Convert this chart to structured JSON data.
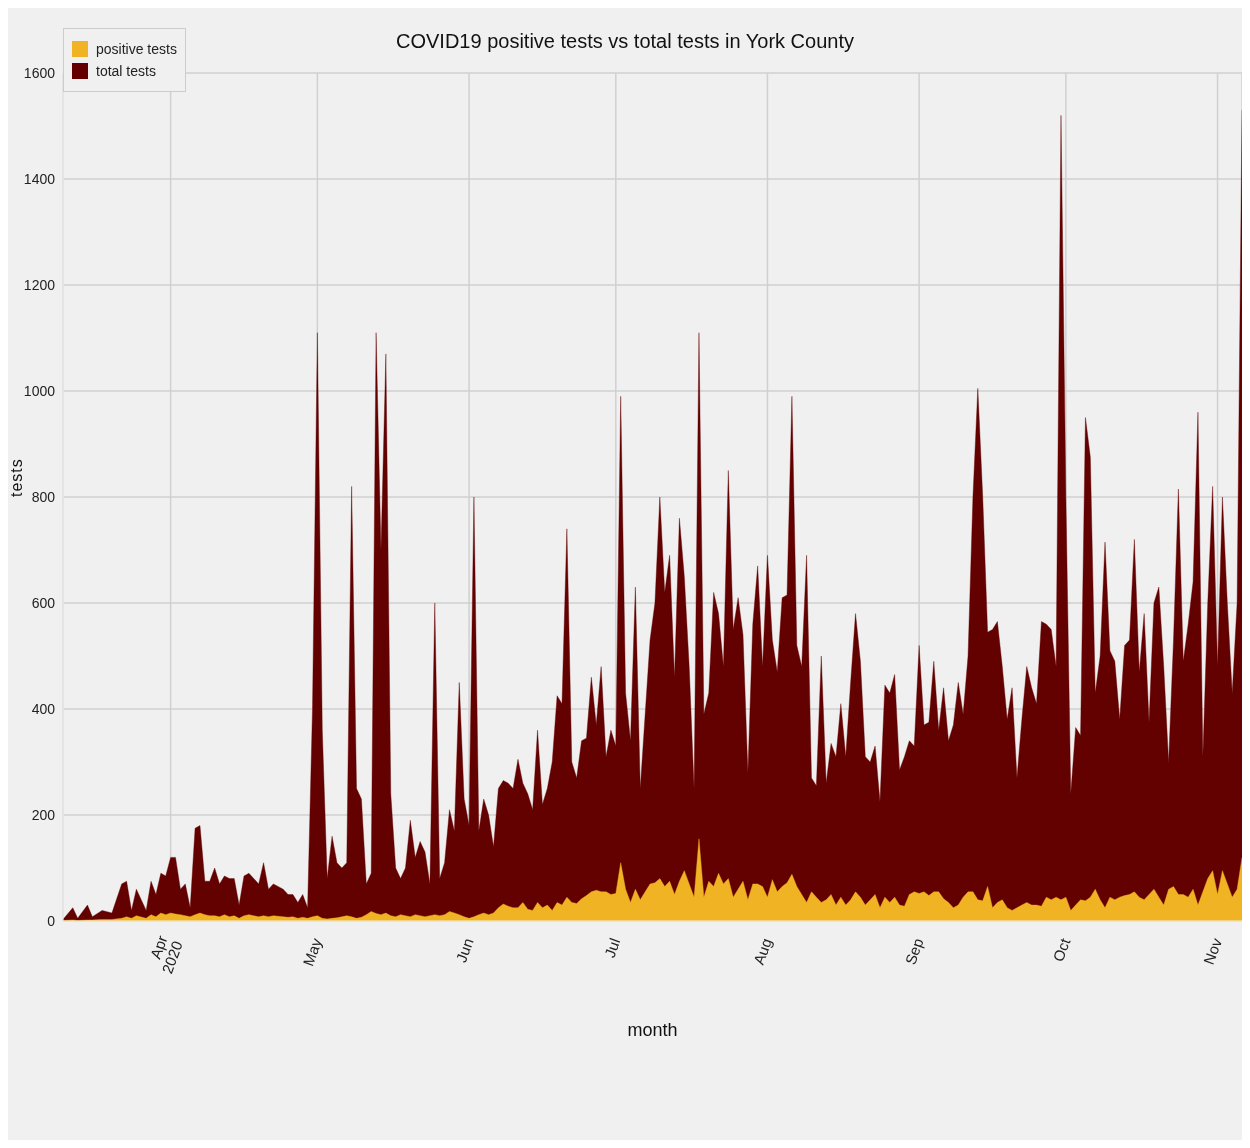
{
  "chart_data": {
    "type": "area",
    "title": "COVID19 positive tests vs total tests in York County",
    "xlabel": "month",
    "ylabel": "tests",
    "x": [
      "2020-03-10",
      "2020-03-12",
      "2020-03-13",
      "2020-03-15",
      "2020-03-16",
      "2020-03-18",
      "2020-03-20",
      "2020-03-22",
      "2020-03-23",
      "2020-03-24",
      "2020-03-25",
      "2020-03-27",
      "2020-03-28",
      "2020-03-29",
      "2020-03-30",
      "2020-03-31",
      "2020-04-01",
      "2020-04-02",
      "2020-04-03",
      "2020-04-04",
      "2020-04-05",
      "2020-04-06",
      "2020-04-07",
      "2020-04-08",
      "2020-04-09",
      "2020-04-10",
      "2020-04-11",
      "2020-04-12",
      "2020-04-13",
      "2020-04-14",
      "2020-04-15",
      "2020-04-16",
      "2020-04-17",
      "2020-04-19",
      "2020-04-20",
      "2020-04-21",
      "2020-04-22",
      "2020-04-24",
      "2020-04-25",
      "2020-04-26",
      "2020-04-27",
      "2020-04-28",
      "2020-04-29",
      "2020-04-30",
      "2020-05-01",
      "2020-05-02",
      "2020-05-03",
      "2020-05-04",
      "2020-05-05",
      "2020-05-06",
      "2020-05-07",
      "2020-05-08",
      "2020-05-09",
      "2020-05-10",
      "2020-05-11",
      "2020-05-12",
      "2020-05-13",
      "2020-05-14",
      "2020-05-15",
      "2020-05-16",
      "2020-05-17",
      "2020-05-18",
      "2020-05-19",
      "2020-05-20",
      "2020-05-21",
      "2020-05-22",
      "2020-05-23",
      "2020-05-24",
      "2020-05-25",
      "2020-05-26",
      "2020-05-27",
      "2020-05-28",
      "2020-05-29",
      "2020-05-30",
      "2020-05-31",
      "2020-06-01",
      "2020-06-02",
      "2020-06-03",
      "2020-06-04",
      "2020-06-05",
      "2020-06-06",
      "2020-06-07",
      "2020-06-08",
      "2020-06-09",
      "2020-06-10",
      "2020-06-11",
      "2020-06-12",
      "2020-06-13",
      "2020-06-14",
      "2020-06-15",
      "2020-06-16",
      "2020-06-17",
      "2020-06-18",
      "2020-06-19",
      "2020-06-20",
      "2020-06-21",
      "2020-06-22",
      "2020-06-23",
      "2020-06-24",
      "2020-06-25",
      "2020-06-26",
      "2020-06-27",
      "2020-06-28",
      "2020-06-29",
      "2020-06-30",
      "2020-07-01",
      "2020-07-02",
      "2020-07-03",
      "2020-07-04",
      "2020-07-05",
      "2020-07-06",
      "2020-07-07",
      "2020-07-08",
      "2020-07-09",
      "2020-07-10",
      "2020-07-11",
      "2020-07-12",
      "2020-07-13",
      "2020-07-14",
      "2020-07-15",
      "2020-07-16",
      "2020-07-17",
      "2020-07-18",
      "2020-07-19",
      "2020-07-20",
      "2020-07-21",
      "2020-07-22",
      "2020-07-23",
      "2020-07-24",
      "2020-07-25",
      "2020-07-26",
      "2020-07-27",
      "2020-07-28",
      "2020-07-29",
      "2020-07-30",
      "2020-07-31",
      "2020-08-01",
      "2020-08-02",
      "2020-08-03",
      "2020-08-04",
      "2020-08-05",
      "2020-08-06",
      "2020-08-07",
      "2020-08-08",
      "2020-08-09",
      "2020-08-10",
      "2020-08-11",
      "2020-08-12",
      "2020-08-13",
      "2020-08-14",
      "2020-08-15",
      "2020-08-16",
      "2020-08-17",
      "2020-08-18",
      "2020-08-19",
      "2020-08-20",
      "2020-08-21",
      "2020-08-22",
      "2020-08-23",
      "2020-08-24",
      "2020-08-25",
      "2020-08-26",
      "2020-08-27",
      "2020-08-28",
      "2020-08-29",
      "2020-08-30",
      "2020-08-31",
      "2020-09-01",
      "2020-09-02",
      "2020-09-03",
      "2020-09-04",
      "2020-09-05",
      "2020-09-06",
      "2020-09-07",
      "2020-09-08",
      "2020-09-09",
      "2020-09-10",
      "2020-09-11",
      "2020-09-12",
      "2020-09-13",
      "2020-09-14",
      "2020-09-15",
      "2020-09-16",
      "2020-09-17",
      "2020-09-18",
      "2020-09-19",
      "2020-09-20",
      "2020-09-21",
      "2020-09-22",
      "2020-09-23",
      "2020-09-24",
      "2020-09-25",
      "2020-09-26",
      "2020-09-27",
      "2020-09-28",
      "2020-09-29",
      "2020-09-30",
      "2020-10-01",
      "2020-10-02",
      "2020-10-03",
      "2020-10-04",
      "2020-10-05",
      "2020-10-06",
      "2020-10-07",
      "2020-10-08",
      "2020-10-09",
      "2020-10-10",
      "2020-10-11",
      "2020-10-12",
      "2020-10-13",
      "2020-10-14",
      "2020-10-15",
      "2020-10-16",
      "2020-10-17",
      "2020-10-18",
      "2020-10-19",
      "2020-10-20",
      "2020-10-21",
      "2020-10-22",
      "2020-10-23",
      "2020-10-24",
      "2020-10-25",
      "2020-10-26",
      "2020-10-27",
      "2020-10-28",
      "2020-10-29",
      "2020-10-30",
      "2020-10-31",
      "2020-11-01",
      "2020-11-02",
      "2020-11-03",
      "2020-11-04",
      "2020-11-05",
      "2020-11-06"
    ],
    "series": [
      {
        "name": "positive tests",
        "color": "#f0b323",
        "values": [
          1,
          2,
          1,
          2,
          2,
          3,
          3,
          5,
          8,
          5,
          10,
          5,
          12,
          8,
          15,
          12,
          15,
          13,
          12,
          10,
          8,
          12,
          15,
          12,
          10,
          10,
          8,
          12,
          8,
          10,
          5,
          10,
          12,
          8,
          10,
          8,
          10,
          8,
          7,
          8,
          5,
          7,
          5,
          8,
          10,
          5,
          4,
          5,
          6,
          8,
          10,
          8,
          5,
          7,
          12,
          18,
          14,
          12,
          15,
          10,
          8,
          12,
          10,
          8,
          12,
          10,
          8,
          10,
          12,
          10,
          12,
          18,
          15,
          12,
          8,
          5,
          8,
          12,
          15,
          12,
          15,
          25,
          32,
          28,
          25,
          25,
          35,
          22,
          20,
          35,
          25,
          30,
          20,
          35,
          30,
          45,
          35,
          33,
          42,
          48,
          55,
          58,
          55,
          55,
          50,
          52,
          110,
          60,
          35,
          60,
          40,
          55,
          70,
          72,
          80,
          65,
          75,
          50,
          75,
          95,
          70,
          45,
          155,
          45,
          75,
          65,
          90,
          70,
          80,
          45,
          60,
          75,
          40,
          70,
          70,
          65,
          45,
          78,
          55,
          65,
          72,
          88,
          65,
          50,
          35,
          55,
          45,
          35,
          40,
          50,
          30,
          45,
          30,
          40,
          55,
          45,
          30,
          40,
          50,
          25,
          45,
          35,
          45,
          30,
          28,
          50,
          55,
          52,
          55,
          48,
          55,
          55,
          42,
          35,
          25,
          30,
          45,
          55,
          55,
          40,
          38,
          65,
          25,
          35,
          40,
          25,
          20,
          25,
          30,
          35,
          30,
          30,
          28,
          45,
          40,
          45,
          40,
          45,
          20,
          30,
          40,
          38,
          45,
          60,
          40,
          25,
          45,
          40,
          45,
          48,
          50,
          55,
          45,
          40,
          50,
          60,
          45,
          30,
          60,
          65,
          50,
          50,
          45,
          60,
          30,
          55,
          80,
          95,
          50,
          95,
          70,
          45,
          60,
          120
        ]
      },
      {
        "name": "total tests",
        "color": "#630000",
        "values": [
          3,
          25,
          5,
          30,
          8,
          20,
          15,
          70,
          75,
          20,
          60,
          20,
          75,
          50,
          90,
          85,
          120,
          120,
          60,
          70,
          25,
          175,
          180,
          75,
          75,
          100,
          70,
          85,
          80,
          80,
          30,
          85,
          90,
          70,
          110,
          60,
          70,
          60,
          50,
          50,
          35,
          50,
          25,
          400,
          1110,
          360,
          80,
          160,
          110,
          100,
          110,
          820,
          250,
          230,
          70,
          90,
          1110,
          700,
          1070,
          240,
          100,
          80,
          100,
          190,
          120,
          150,
          130,
          70,
          600,
          80,
          110,
          210,
          170,
          450,
          230,
          180,
          800,
          170,
          230,
          200,
          140,
          250,
          265,
          260,
          250,
          305,
          260,
          240,
          210,
          360,
          220,
          250,
          300,
          425,
          410,
          740,
          300,
          270,
          340,
          345,
          460,
          370,
          480,
          310,
          360,
          330,
          990,
          430,
          340,
          630,
          250,
          390,
          530,
          600,
          800,
          620,
          690,
          460,
          760,
          650,
          480,
          250,
          1110,
          390,
          430,
          620,
          580,
          480,
          850,
          550,
          610,
          540,
          280,
          560,
          670,
          480,
          690,
          530,
          470,
          610,
          615,
          990,
          520,
          480,
          690,
          270,
          255,
          500,
          260,
          335,
          310,
          410,
          310,
          450,
          580,
          490,
          310,
          300,
          330,
          225,
          445,
          430,
          465,
          285,
          310,
          340,
          330,
          520,
          370,
          375,
          490,
          360,
          440,
          340,
          370,
          450,
          390,
          500,
          800,
          1005,
          800,
          545,
          550,
          565,
          480,
          380,
          440,
          270,
          380,
          480,
          440,
          410,
          565,
          560,
          550,
          480,
          1520,
          800,
          240,
          365,
          350,
          950,
          875,
          430,
          500,
          715,
          510,
          490,
          380,
          520,
          530,
          720,
          470,
          580,
          375,
          600,
          630,
          480,
          300,
          530,
          815,
          490,
          560,
          640,
          960,
          310,
          600,
          820,
          480,
          800,
          600,
          430,
          600,
          1530
        ]
      }
    ],
    "xlim": [
      "2020-03-10",
      "2020-11-06"
    ],
    "xticks": [
      {
        "value": "2020-04-01",
        "label": "Apr\n2020"
      },
      {
        "value": "2020-05-01",
        "label": "May"
      },
      {
        "value": "2020-06-01",
        "label": "Jun"
      },
      {
        "value": "2020-07-01",
        "label": "Jul"
      },
      {
        "value": "2020-08-01",
        "label": "Aug"
      },
      {
        "value": "2020-09-01",
        "label": "Sep"
      },
      {
        "value": "2020-10-01",
        "label": "Oct"
      },
      {
        "value": "2020-11-01",
        "label": "Nov"
      }
    ],
    "ylim": [
      0,
      1600
    ],
    "yticks": [
      0,
      200,
      400,
      600,
      800,
      1000,
      1200,
      1400,
      1600
    ],
    "grid": true,
    "legend": "top left"
  }
}
